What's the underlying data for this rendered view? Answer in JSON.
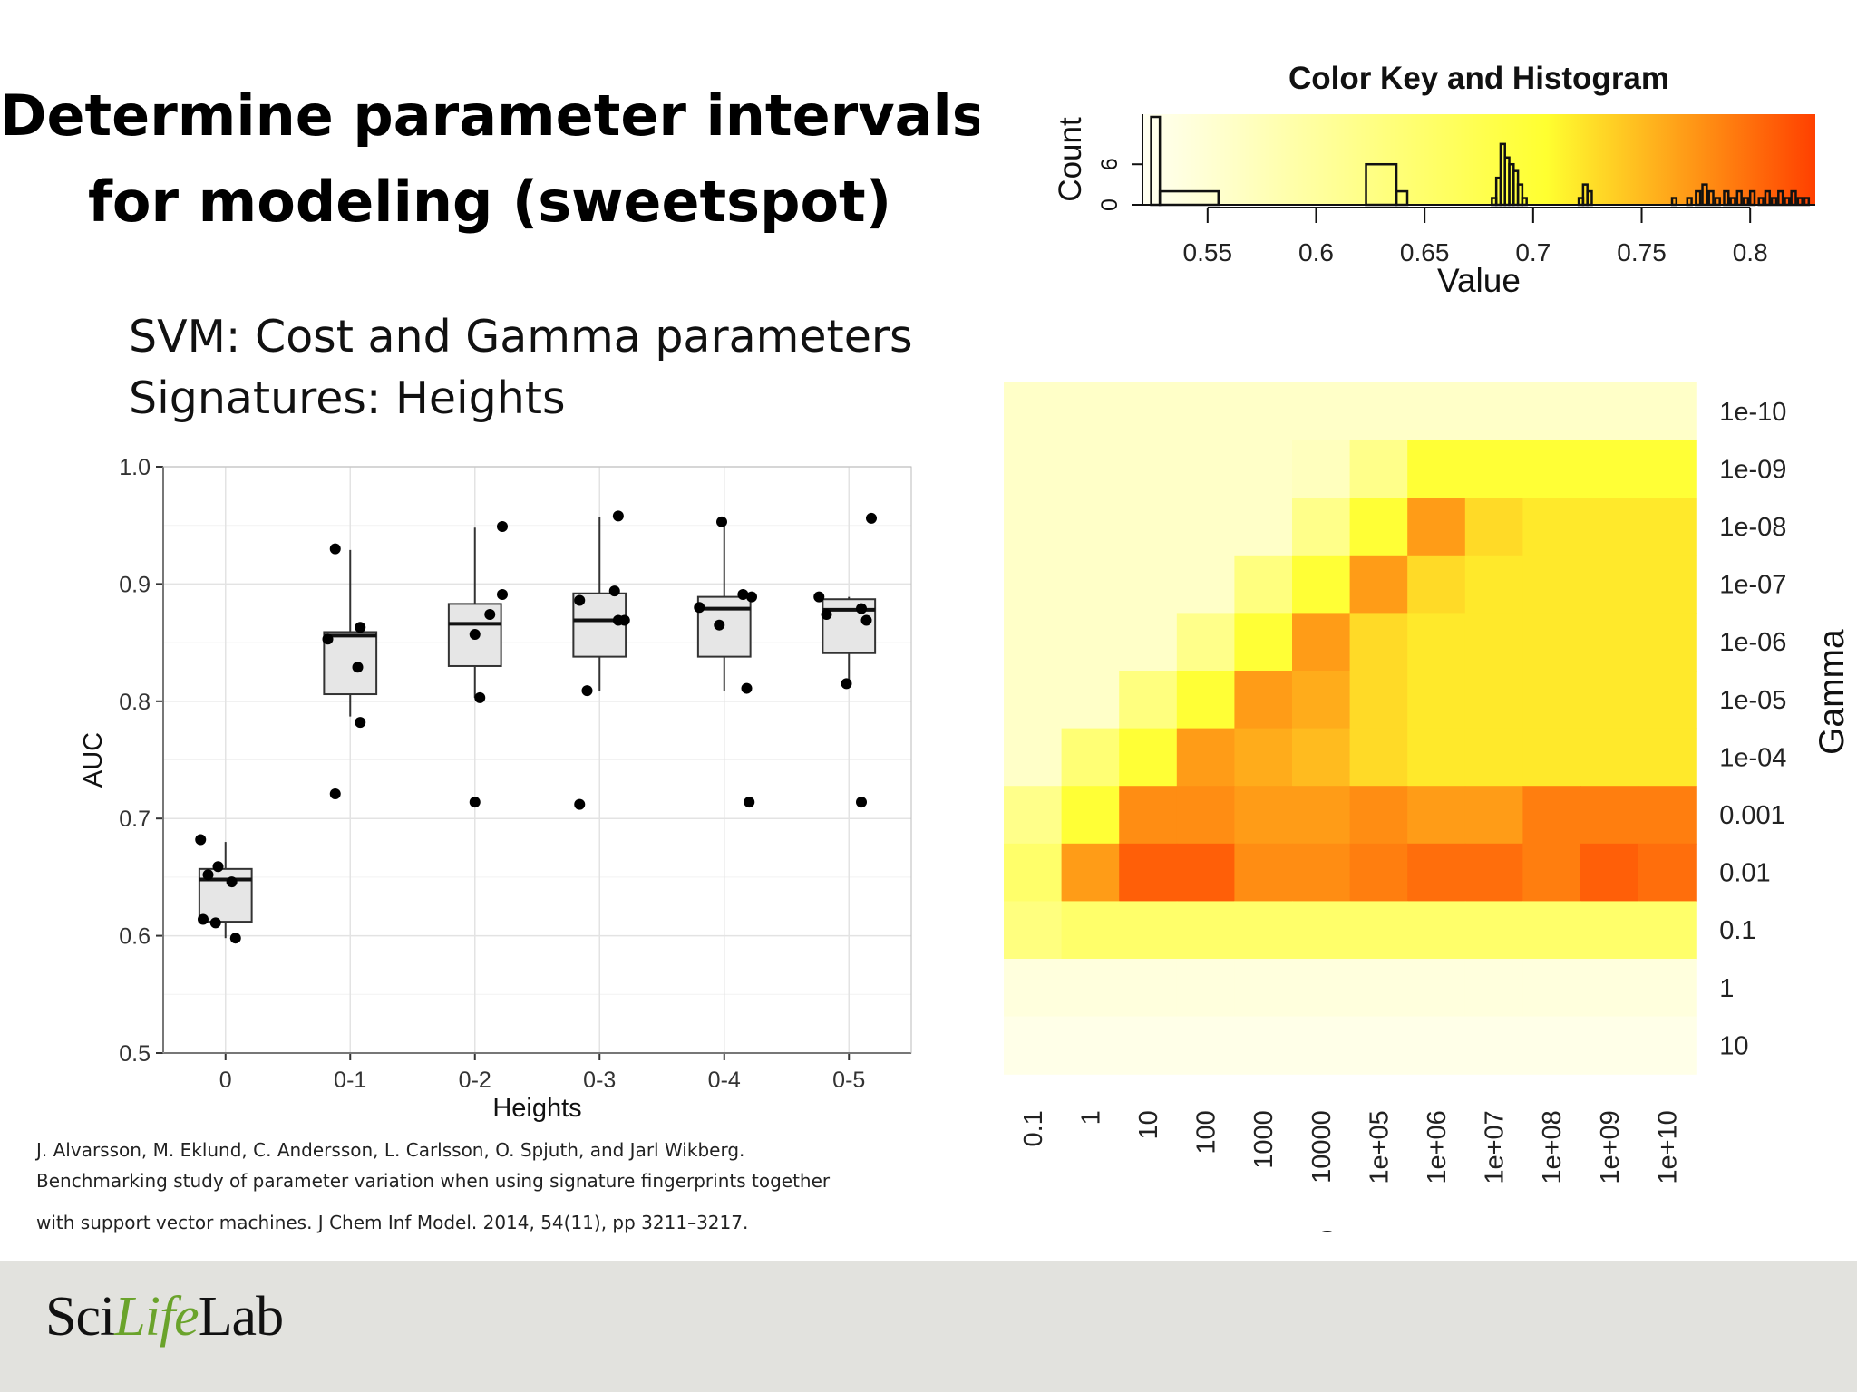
{
  "slide": {
    "title_line1": "Determine parameter intervals",
    "title_line2": "for modeling (sweetspot)",
    "subtitle_line1": "SVM: Cost and Gamma parameters",
    "subtitle_line2": "Signatures: Heights",
    "citation_line1": "J. Alvarsson, M. Eklund, C. Andersson, L. Carlsson, O. Spjuth, and Jarl Wikberg.",
    "citation_line2": "Benchmarking study of parameter variation when using signature fingerprints together",
    "citation_line3": "with support vector machines. J Chem Inf Model. 2014, 54(11), pp 3211–3217.",
    "logo_prefix": "Sci",
    "logo_life": "Life",
    "logo_suffix": "Lab"
  },
  "chart_data": [
    {
      "type": "box",
      "xlabel": "Heights",
      "ylabel": "AUC",
      "ylim": [
        0.5,
        1.0
      ],
      "yticks": [
        "0.5",
        "0.6",
        "0.7",
        "0.8",
        "0.9",
        "1.0"
      ],
      "grid": true,
      "categories": [
        "0",
        "0-1",
        "0-2",
        "0-3",
        "0-4",
        "0-5"
      ],
      "boxes": [
        {
          "min": 0.598,
          "q1": 0.612,
          "median": 0.648,
          "q3": 0.657,
          "max": 0.68
        },
        {
          "min": 0.787,
          "q1": 0.806,
          "median": 0.856,
          "q3": 0.859,
          "max": 0.929
        },
        {
          "min": 0.803,
          "q1": 0.83,
          "median": 0.866,
          "q3": 0.883,
          "max": 0.948
        },
        {
          "min": 0.809,
          "q1": 0.838,
          "median": 0.869,
          "q3": 0.892,
          "max": 0.957
        },
        {
          "min": 0.809,
          "q1": 0.838,
          "median": 0.879,
          "q3": 0.889,
          "max": 0.954
        },
        {
          "min": 0.814,
          "q1": 0.841,
          "median": 0.878,
          "q3": 0.887,
          "max": 0.889
        }
      ],
      "points": [
        [
          {
            "dx": -0.2,
            "y": 0.682
          },
          {
            "dx": -0.18,
            "y": 0.614
          },
          {
            "dx": -0.08,
            "y": 0.611
          },
          {
            "dx": 0.05,
            "y": 0.646
          },
          {
            "dx": -0.06,
            "y": 0.659
          },
          {
            "dx": 0.08,
            "y": 0.598
          },
          {
            "dx": -0.14,
            "y": 0.652
          }
        ],
        [
          {
            "dx": -0.12,
            "y": 0.93
          },
          {
            "dx": -0.18,
            "y": 0.853
          },
          {
            "dx": 0.08,
            "y": 0.863
          },
          {
            "dx": 0.06,
            "y": 0.829
          },
          {
            "dx": 0.08,
            "y": 0.782
          },
          {
            "dx": -0.12,
            "y": 0.721
          }
        ],
        [
          {
            "dx": 0.22,
            "y": 0.949
          },
          {
            "dx": 0.22,
            "y": 0.891
          },
          {
            "dx": 0.12,
            "y": 0.874
          },
          {
            "dx": 0.0,
            "y": 0.857
          },
          {
            "dx": 0.04,
            "y": 0.803
          },
          {
            "dx": 0.0,
            "y": 0.714
          }
        ],
        [
          {
            "dx": 0.15,
            "y": 0.958
          },
          {
            "dx": 0.12,
            "y": 0.894
          },
          {
            "dx": -0.16,
            "y": 0.886
          },
          {
            "dx": 0.15,
            "y": 0.869
          },
          {
            "dx": 0.2,
            "y": 0.869
          },
          {
            "dx": -0.1,
            "y": 0.809
          },
          {
            "dx": -0.16,
            "y": 0.712
          }
        ],
        [
          {
            "dx": -0.02,
            "y": 0.953
          },
          {
            "dx": 0.15,
            "y": 0.891
          },
          {
            "dx": 0.22,
            "y": 0.889
          },
          {
            "dx": -0.2,
            "y": 0.88
          },
          {
            "dx": -0.04,
            "y": 0.865
          },
          {
            "dx": 0.18,
            "y": 0.811
          },
          {
            "dx": 0.2,
            "y": 0.714
          }
        ],
        [
          {
            "dx": 0.18,
            "y": 0.956
          },
          {
            "dx": -0.24,
            "y": 0.889
          },
          {
            "dx": -0.18,
            "y": 0.874
          },
          {
            "dx": 0.1,
            "y": 0.879
          },
          {
            "dx": 0.14,
            "y": 0.869
          },
          {
            "dx": -0.02,
            "y": 0.815
          },
          {
            "dx": 0.1,
            "y": 0.714
          }
        ]
      ]
    },
    {
      "type": "histogram",
      "title": "Color Key and Histogram",
      "xlabel": "Value",
      "ylabel": "Count",
      "xlim": [
        0.52,
        0.83
      ],
      "xticks": [
        "0.55",
        "0.6",
        "0.65",
        "0.7",
        "0.75",
        "0.8"
      ],
      "yticks": [
        "0",
        "6"
      ],
      "ylim": [
        0,
        13
      ],
      "color_low": "#fffff2",
      "color_mid": "#ffff30",
      "color_high": "#ff4000",
      "bins": [
        {
          "x0": 0.524,
          "x1": 0.528,
          "count": 13
        },
        {
          "x0": 0.528,
          "x1": 0.555,
          "count": 2
        },
        {
          "x0": 0.623,
          "x1": 0.637,
          "count": 6
        },
        {
          "x0": 0.637,
          "x1": 0.642,
          "count": 2
        },
        {
          "x0": 0.681,
          "x1": 0.683,
          "count": 1
        },
        {
          "x0": 0.683,
          "x1": 0.685,
          "count": 4
        },
        {
          "x0": 0.685,
          "x1": 0.687,
          "count": 9
        },
        {
          "x0": 0.687,
          "x1": 0.689,
          "count": 7
        },
        {
          "x0": 0.689,
          "x1": 0.691,
          "count": 6
        },
        {
          "x0": 0.691,
          "x1": 0.693,
          "count": 5
        },
        {
          "x0": 0.693,
          "x1": 0.695,
          "count": 3
        },
        {
          "x0": 0.695,
          "x1": 0.697,
          "count": 1
        },
        {
          "x0": 0.721,
          "x1": 0.723,
          "count": 1
        },
        {
          "x0": 0.723,
          "x1": 0.725,
          "count": 3
        },
        {
          "x0": 0.725,
          "x1": 0.727,
          "count": 2
        },
        {
          "x0": 0.764,
          "x1": 0.766,
          "count": 1
        },
        {
          "x0": 0.771,
          "x1": 0.773,
          "count": 1
        },
        {
          "x0": 0.775,
          "x1": 0.777,
          "count": 2
        },
        {
          "x0": 0.778,
          "x1": 0.78,
          "count": 3
        },
        {
          "x0": 0.781,
          "x1": 0.783,
          "count": 2
        },
        {
          "x0": 0.784,
          "x1": 0.786,
          "count": 1
        },
        {
          "x0": 0.788,
          "x1": 0.79,
          "count": 2
        },
        {
          "x0": 0.791,
          "x1": 0.793,
          "count": 1
        },
        {
          "x0": 0.794,
          "x1": 0.796,
          "count": 2
        },
        {
          "x0": 0.797,
          "x1": 0.799,
          "count": 1
        },
        {
          "x0": 0.8,
          "x1": 0.802,
          "count": 2
        },
        {
          "x0": 0.804,
          "x1": 0.806,
          "count": 1
        },
        {
          "x0": 0.807,
          "x1": 0.809,
          "count": 2
        },
        {
          "x0": 0.81,
          "x1": 0.812,
          "count": 1
        },
        {
          "x0": 0.813,
          "x1": 0.815,
          "count": 2
        },
        {
          "x0": 0.816,
          "x1": 0.818,
          "count": 1
        },
        {
          "x0": 0.819,
          "x1": 0.821,
          "count": 2
        },
        {
          "x0": 0.822,
          "x1": 0.824,
          "count": 1
        },
        {
          "x0": 0.825,
          "x1": 0.827,
          "count": 1
        }
      ]
    },
    {
      "type": "heatmap",
      "xlabel": "Cost",
      "ylabel": "Gamma",
      "x": [
        "0.1",
        "1",
        "10",
        "100",
        "1000",
        "10000",
        "1e+05",
        "1e+06",
        "1e+07",
        "1e+08",
        "1e+09",
        "1e+10"
      ],
      "y": [
        "1e-10",
        "1e-09",
        "1e-08",
        "1e-07",
        "1e-06",
        "1e-05",
        "1e-04",
        "0.001",
        "0.01",
        "0.1",
        "1",
        "10"
      ],
      "value_range": [
        0.52,
        0.83
      ],
      "values": [
        [
          0.56,
          0.56,
          0.56,
          0.56,
          0.56,
          0.56,
          0.56,
          0.56,
          0.56,
          0.56,
          0.56,
          0.56
        ],
        [
          0.56,
          0.56,
          0.56,
          0.56,
          0.56,
          0.57,
          0.62,
          0.7,
          0.7,
          0.7,
          0.7,
          0.7
        ],
        [
          0.56,
          0.56,
          0.56,
          0.56,
          0.56,
          0.62,
          0.7,
          0.77,
          0.73,
          0.72,
          0.72,
          0.72
        ],
        [
          0.56,
          0.56,
          0.56,
          0.56,
          0.63,
          0.7,
          0.77,
          0.73,
          0.72,
          0.72,
          0.72,
          0.72
        ],
        [
          0.56,
          0.56,
          0.56,
          0.62,
          0.7,
          0.77,
          0.73,
          0.72,
          0.72,
          0.72,
          0.72,
          0.72
        ],
        [
          0.56,
          0.56,
          0.63,
          0.7,
          0.77,
          0.76,
          0.73,
          0.72,
          0.72,
          0.72,
          0.72,
          0.72
        ],
        [
          0.56,
          0.64,
          0.7,
          0.77,
          0.76,
          0.75,
          0.73,
          0.72,
          0.72,
          0.72,
          0.72,
          0.72
        ],
        [
          0.62,
          0.7,
          0.78,
          0.78,
          0.77,
          0.77,
          0.78,
          0.77,
          0.77,
          0.79,
          0.79,
          0.79
        ],
        [
          0.65,
          0.77,
          0.81,
          0.81,
          0.78,
          0.78,
          0.79,
          0.8,
          0.8,
          0.79,
          0.81,
          0.8
        ],
        [
          0.63,
          0.65,
          0.65,
          0.65,
          0.65,
          0.65,
          0.65,
          0.65,
          0.65,
          0.65,
          0.65,
          0.65
        ],
        [
          0.54,
          0.54,
          0.54,
          0.54,
          0.54,
          0.54,
          0.54,
          0.54,
          0.54,
          0.54,
          0.54,
          0.54
        ],
        [
          0.53,
          0.53,
          0.53,
          0.53,
          0.53,
          0.53,
          0.53,
          0.53,
          0.53,
          0.53,
          0.53,
          0.53
        ]
      ]
    }
  ]
}
